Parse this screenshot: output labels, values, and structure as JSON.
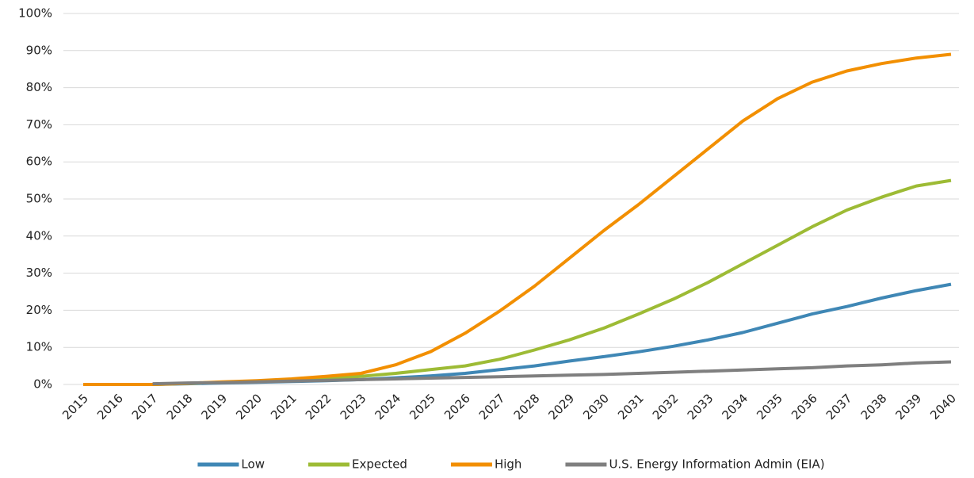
{
  "chart_data": {
    "type": "line",
    "categories": [
      "2015",
      "2016",
      "2017",
      "2018",
      "2019",
      "2020",
      "2021",
      "2022",
      "2023",
      "2024",
      "2025",
      "2026",
      "2027",
      "2028",
      "2029",
      "2030",
      "2031",
      "2032",
      "2033",
      "2034",
      "2035",
      "2036",
      "2037",
      "2038",
      "2039",
      "2040"
    ],
    "series": [
      {
        "name": "Low",
        "color": "#3f87b5",
        "values": [
          0,
          0,
          0,
          0.2,
          0.4,
          0.6,
          0.8,
          1.0,
          1.3,
          1.8,
          2.3,
          3.0,
          4.0,
          5.0,
          6.3,
          7.5,
          8.8,
          10.3,
          12.0,
          14.0,
          16.5,
          19.0,
          21.0,
          23.3,
          25.3,
          27.0
        ]
      },
      {
        "name": "Expected",
        "color": "#9dbb35",
        "values": [
          0,
          0,
          0,
          0.3,
          0.6,
          0.9,
          1.2,
          1.6,
          2.2,
          3.0,
          4.0,
          5.0,
          6.8,
          9.3,
          12.0,
          15.2,
          19.0,
          23.0,
          27.5,
          32.5,
          37.5,
          42.5,
          47.0,
          50.5,
          53.5,
          55.0
        ]
      },
      {
        "name": "High",
        "color": "#f28f00",
        "values": [
          0,
          0,
          0,
          0.3,
          0.7,
          1.0,
          1.5,
          2.2,
          3.0,
          5.3,
          8.8,
          13.8,
          19.8,
          26.5,
          34.0,
          41.5,
          48.5,
          56.0,
          63.5,
          71.0,
          77.0,
          81.5,
          84.5,
          86.5,
          88.0,
          89.0
        ]
      },
      {
        "name": "U.S. Energy Information Admin (EIA)",
        "color": "#7f7f7f",
        "values": [
          null,
          null,
          0.2,
          0.4,
          0.5,
          0.7,
          0.9,
          1.1,
          1.3,
          1.5,
          1.7,
          1.9,
          2.1,
          2.3,
          2.5,
          2.7,
          3.0,
          3.3,
          3.6,
          3.9,
          4.2,
          4.5,
          5.0,
          5.3,
          5.8,
          6.1
        ]
      }
    ],
    "ylim": [
      0,
      100
    ],
    "yticks": [
      {
        "value": 0,
        "label": "0%"
      },
      {
        "value": 10,
        "label": "10%"
      },
      {
        "value": 20,
        "label": "20%"
      },
      {
        "value": 30,
        "label": "30%"
      },
      {
        "value": 40,
        "label": "40%"
      },
      {
        "value": 50,
        "label": "50%"
      },
      {
        "value": 60,
        "label": "60%"
      },
      {
        "value": 70,
        "label": "70%"
      },
      {
        "value": 80,
        "label": "80%"
      },
      {
        "value": 90,
        "label": "90%"
      },
      {
        "value": 100,
        "label": "100%"
      }
    ],
    "grid": true,
    "legend": "bottom"
  }
}
